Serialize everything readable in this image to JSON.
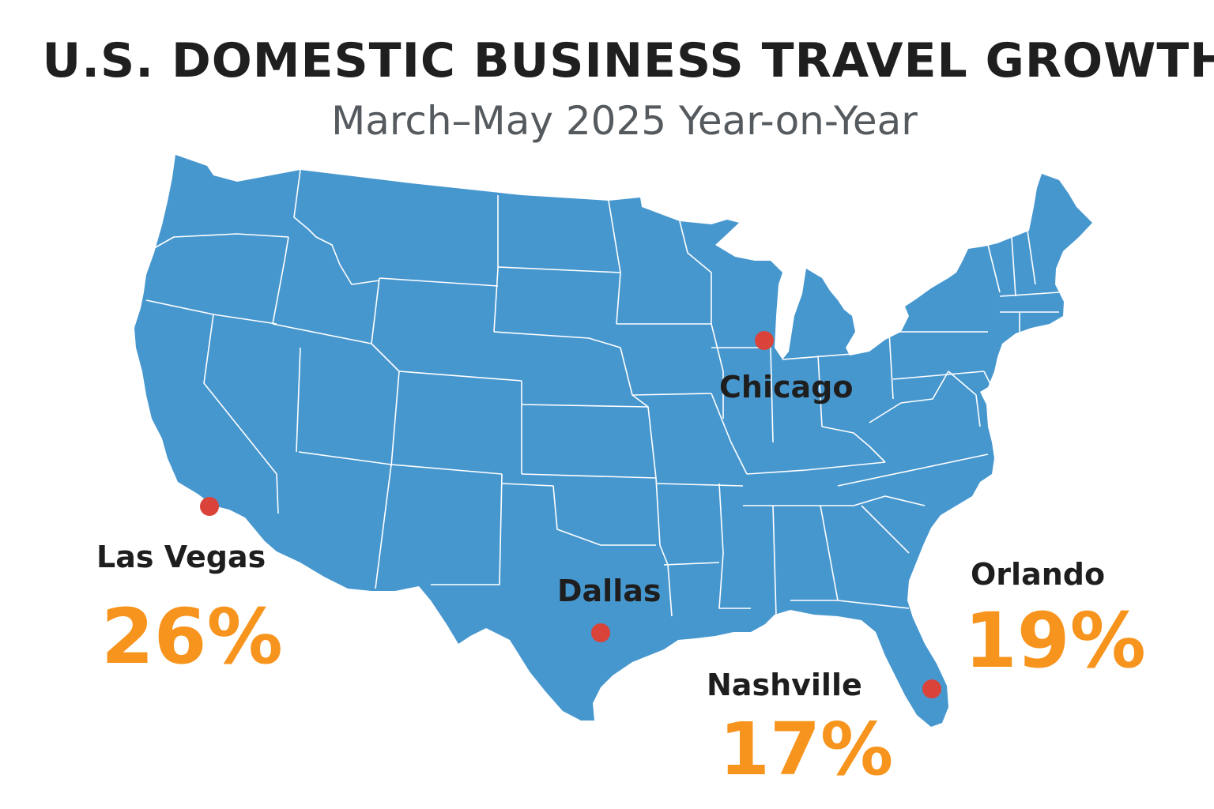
{
  "header": {
    "title": "U.S. DOMESTIC BUSINESS TRAVEL GROWTH",
    "subtitle": "March–May 2025 Year-on-Year"
  },
  "colors": {
    "land": "#4797cf",
    "state_border": "#ffffff",
    "marker": "#d9433a",
    "percent": "#f7941d",
    "label": "#1e1e1e"
  },
  "cities": [
    {
      "id": "las-vegas",
      "label": "Las Vegas",
      "value": "26%"
    },
    {
      "id": "dallas",
      "label": "Dallas",
      "value": ""
    },
    {
      "id": "chicago",
      "label": "Chicago",
      "value": ""
    },
    {
      "id": "nashville",
      "label": "Nashville",
      "value": "17%"
    },
    {
      "id": "orlando",
      "label": "Orlando",
      "value": "19%"
    }
  ]
}
